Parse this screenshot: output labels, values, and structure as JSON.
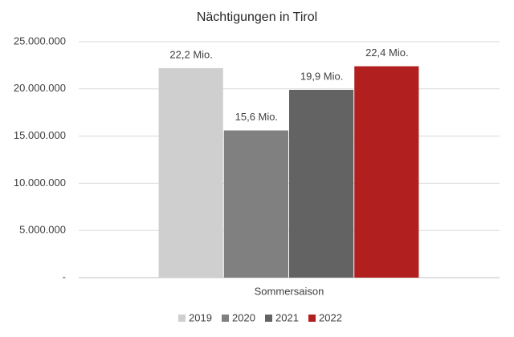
{
  "chart_data": {
    "type": "bar",
    "title": "Nächtigungen in Tirol",
    "categories": [
      "Sommersaison"
    ],
    "series": [
      {
        "name": "2019",
        "color": "#cfcfcf",
        "values": [
          22200000
        ],
        "value_labels": [
          "22,2 Mio."
        ]
      },
      {
        "name": "2020",
        "color": "#808080",
        "values": [
          15600000
        ],
        "value_labels": [
          "15,6 Mio."
        ]
      },
      {
        "name": "2021",
        "color": "#636363",
        "values": [
          19900000
        ],
        "value_labels": [
          "19,9 Mio."
        ]
      },
      {
        "name": "2022",
        "color": "#b21f1f",
        "values": [
          22400000
        ],
        "value_labels": [
          "22,4 Mio."
        ]
      }
    ],
    "ylim": [
      0,
      25000000
    ],
    "yticks": [
      {
        "value": 0,
        "label": "-"
      },
      {
        "value": 5000000,
        "label": "5.000.000"
      },
      {
        "value": 10000000,
        "label": "10.000.000"
      },
      {
        "value": 15000000,
        "label": "15.000.000"
      },
      {
        "value": 20000000,
        "label": "20.000.000"
      },
      {
        "value": 25000000,
        "label": "25.000.000"
      }
    ],
    "grid": true
  }
}
